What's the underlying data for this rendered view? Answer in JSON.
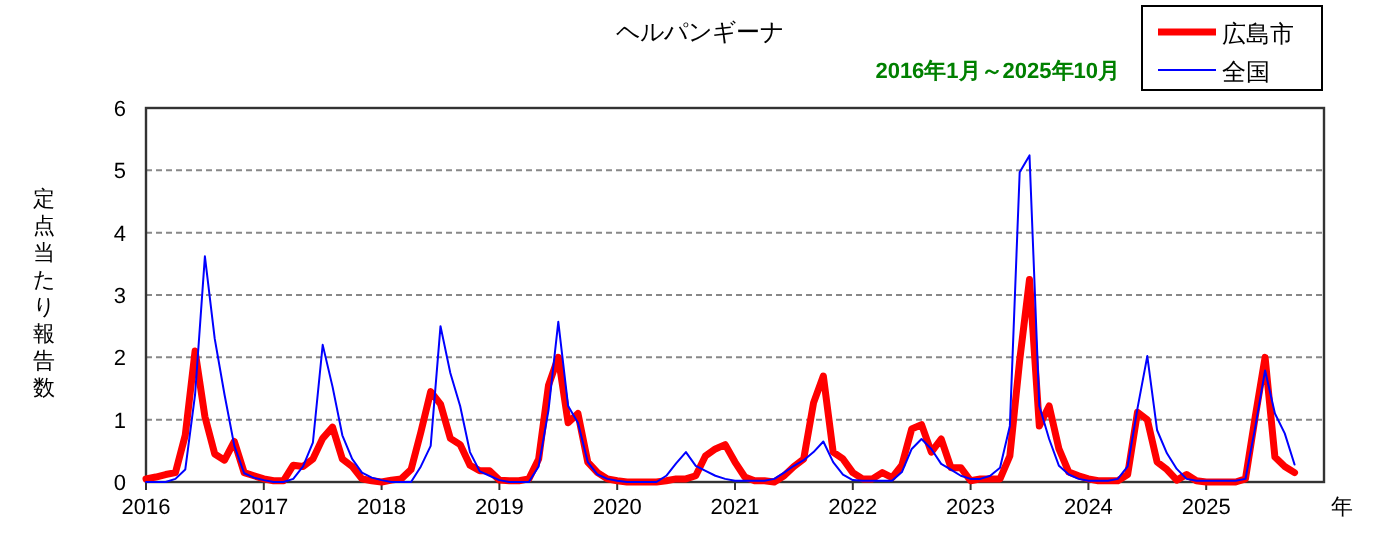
{
  "chart_data": {
    "type": "line",
    "title": "ヘルパンギーナ",
    "subtitle": "2016年1月～2025年10月",
    "xlabel": "年",
    "ylabel": "定点当たり報告数",
    "x": [
      "2016-01",
      "2016-02",
      "2016-03",
      "2016-04",
      "2016-05",
      "2016-06",
      "2016-07",
      "2016-08",
      "2016-09",
      "2016-10",
      "2016-11",
      "2016-12",
      "2017-01",
      "2017-02",
      "2017-03",
      "2017-04",
      "2017-05",
      "2017-06",
      "2017-07",
      "2017-08",
      "2017-09",
      "2017-10",
      "2017-11",
      "2017-12",
      "2018-01",
      "2018-02",
      "2018-03",
      "2018-04",
      "2018-05",
      "2018-06",
      "2018-07",
      "2018-08",
      "2018-09",
      "2018-10",
      "2018-11",
      "2018-12",
      "2019-01",
      "2019-02",
      "2019-03",
      "2019-04",
      "2019-05",
      "2019-06",
      "2019-07",
      "2019-08",
      "2019-09",
      "2019-10",
      "2019-11",
      "2019-12",
      "2020-01",
      "2020-02",
      "2020-03",
      "2020-04",
      "2020-05",
      "2020-06",
      "2020-07",
      "2020-08",
      "2020-09",
      "2020-10",
      "2020-11",
      "2020-12",
      "2021-01",
      "2021-02",
      "2021-03",
      "2021-04",
      "2021-05",
      "2021-06",
      "2021-07",
      "2021-08",
      "2021-09",
      "2021-10",
      "2021-11",
      "2021-12",
      "2022-01",
      "2022-02",
      "2022-03",
      "2022-04",
      "2022-05",
      "2022-06",
      "2022-07",
      "2022-08",
      "2022-09",
      "2022-10",
      "2022-11",
      "2022-12",
      "2023-01",
      "2023-02",
      "2023-03",
      "2023-04",
      "2023-05",
      "2023-06",
      "2023-07",
      "2023-08",
      "2023-09",
      "2023-10",
      "2023-11",
      "2023-12",
      "2024-01",
      "2024-02",
      "2024-03",
      "2024-04",
      "2024-05",
      "2024-06",
      "2024-07",
      "2024-08",
      "2024-09",
      "2024-10",
      "2024-11",
      "2024-12",
      "2025-01",
      "2025-02",
      "2025-03",
      "2025-04",
      "2025-05",
      "2025-06",
      "2025-07",
      "2025-08",
      "2025-09",
      "2025-10"
    ],
    "series": [
      {
        "name": "広島市",
        "color": "#ff0000",
        "values": [
          0.05,
          0.08,
          0.12,
          0.15,
          0.75,
          2.1,
          1.05,
          0.45,
          0.35,
          0.65,
          0.15,
          0.1,
          0.05,
          0.02,
          0.02,
          0.27,
          0.25,
          0.37,
          0.7,
          0.88,
          0.37,
          0.25,
          0.05,
          0.02,
          0,
          0.03,
          0.05,
          0.2,
          0.8,
          1.45,
          1.25,
          0.7,
          0.6,
          0.27,
          0.18,
          0.18,
          0.03,
          0.02,
          0.02,
          0.05,
          0.37,
          1.55,
          2.0,
          0.95,
          1.1,
          0.32,
          0.15,
          0.05,
          0.02,
          0,
          0,
          0,
          0,
          0.02,
          0.05,
          0.05,
          0.1,
          0.42,
          0.53,
          0.6,
          0.32,
          0.08,
          0.02,
          0.02,
          0,
          0.1,
          0.25,
          0.37,
          1.27,
          1.7,
          0.48,
          0.37,
          0.15,
          0.05,
          0.05,
          0.15,
          0.07,
          0.27,
          0.85,
          0.92,
          0.48,
          0.69,
          0.23,
          0.23,
          0.02,
          0.05,
          0.05,
          0.05,
          0.42,
          1.95,
          3.25,
          0.9,
          1.22,
          0.53,
          0.16,
          0.1,
          0.05,
          0.02,
          0.02,
          0.02,
          0.12,
          1.12,
          1.0,
          0.32,
          0.2,
          0.03,
          0.12,
          0.02,
          0,
          0,
          0,
          0,
          0.05,
          1.05,
          2.0,
          0.4,
          0.25,
          0.15
        ]
      },
      {
        "name": "全国",
        "color": "#0000ff",
        "values": [
          0,
          0,
          0,
          0.05,
          0.2,
          1.4,
          3.62,
          2.3,
          1.4,
          0.58,
          0.14,
          0.07,
          0.03,
          0,
          0,
          0.05,
          0.25,
          0.63,
          2.2,
          1.53,
          0.75,
          0.37,
          0.15,
          0.07,
          0.03,
          0,
          0,
          0,
          0.25,
          0.58,
          2.5,
          1.75,
          1.22,
          0.48,
          0.17,
          0.1,
          0.03,
          0,
          0,
          0,
          0.25,
          1.15,
          2.57,
          1.22,
          0.95,
          0.32,
          0.12,
          0.05,
          0.02,
          0,
          0,
          0,
          0,
          0.1,
          0.3,
          0.48,
          0.26,
          0.18,
          0.1,
          0.05,
          0.02,
          0.02,
          0.02,
          0.02,
          0.05,
          0.15,
          0.26,
          0.35,
          0.48,
          0.65,
          0.32,
          0.12,
          0.03,
          0.02,
          0.02,
          0.02,
          0.02,
          0.16,
          0.53,
          0.69,
          0.53,
          0.29,
          0.2,
          0.1,
          0.05,
          0.05,
          0.1,
          0.23,
          0.9,
          4.97,
          5.24,
          1.22,
          0.69,
          0.26,
          0.12,
          0.05,
          0.02,
          0.02,
          0.02,
          0.05,
          0.25,
          1.18,
          2.02,
          0.83,
          0.46,
          0.21,
          0.05,
          0.02,
          0.02,
          0.02,
          0.02,
          0.02,
          0.05,
          0.88,
          1.79,
          1.1,
          0.78,
          0.28
        ]
      }
    ],
    "xlim": [
      "2016-01",
      "2026-01"
    ],
    "xticks": [
      "2016",
      "2017",
      "2018",
      "2019",
      "2020",
      "2021",
      "2022",
      "2023",
      "2024",
      "2025"
    ],
    "ylim": [
      0,
      6
    ],
    "yticks": [
      0,
      1,
      2,
      3,
      4,
      5,
      6
    ],
    "grid": "y",
    "legend": "top right"
  }
}
